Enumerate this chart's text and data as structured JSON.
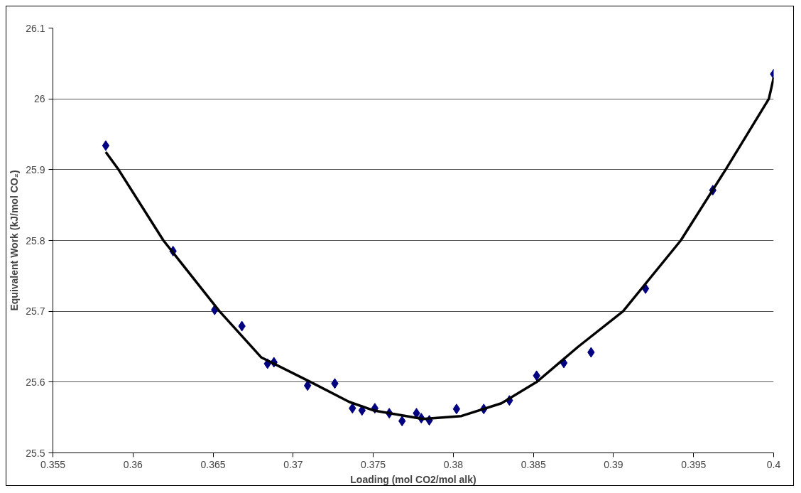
{
  "chart_data": {
    "type": "scatter",
    "xlabel": "Loading (mol CO2/mol alk)",
    "ylabel": "Equivalent Work (kJ/mol CO₂)",
    "xlim": [
      0.355,
      0.4
    ],
    "xticks": [
      0.355,
      0.36,
      0.365,
      0.37,
      0.375,
      0.38,
      0.385,
      0.39,
      0.395,
      0.4
    ],
    "ylim": [
      25.5,
      26.1
    ],
    "yticks": [
      25.5,
      25.6,
      25.7,
      25.8,
      25.9,
      26,
      26.1
    ],
    "grid": "y",
    "marker": "diamond",
    "series": [
      {
        "color": "#000080",
        "x": [
          0.3583,
          0.3625,
          0.3651,
          0.3668,
          0.3684,
          0.3688,
          0.3709,
          0.3726,
          0.3737,
          0.3743,
          0.3751,
          0.376,
          0.3768,
          0.3777,
          0.378,
          0.3785,
          0.3802,
          0.3819,
          0.3835,
          0.3852,
          0.3869,
          0.3886,
          0.392,
          0.3962,
          0.4
        ],
        "values": [
          25.934,
          25.785,
          25.702,
          25.679,
          25.626,
          25.628,
          25.595,
          25.598,
          25.563,
          25.56,
          25.563,
          25.556,
          25.545,
          25.556,
          25.549,
          25.546,
          25.562,
          25.562,
          25.574,
          25.609,
          25.627,
          25.642,
          25.732,
          25.871,
          26.035
        ]
      },
      {
        "type": "line",
        "color": "#000000",
        "marker": "none",
        "line_style": "solid",
        "x": [
          0.3583,
          0.3591,
          0.3619,
          0.3654,
          0.368,
          0.3711,
          0.3735,
          0.375,
          0.3781,
          0.3805,
          0.383,
          0.3852,
          0.3878,
          0.3906,
          0.3942,
          0.397,
          0.3997,
          0.4
        ],
        "values": [
          25.925,
          25.9,
          25.8,
          25.7,
          25.635,
          25.6,
          25.572,
          25.56,
          25.548,
          25.552,
          25.57,
          25.6,
          25.65,
          25.7,
          25.8,
          25.9,
          26.0,
          26.03
        ]
      }
    ]
  }
}
